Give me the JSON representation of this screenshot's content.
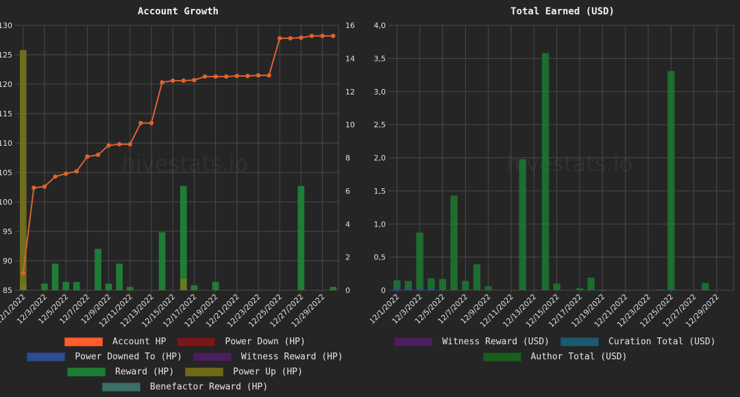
{
  "chart_data": [
    {
      "type": "bar",
      "title": "Account Growth",
      "watermark": "hivestats.io",
      "categories": [
        "12/1/2022",
        "12/2/2022",
        "12/3/2022",
        "12/4/2022",
        "12/5/2022",
        "12/6/2022",
        "12/7/2022",
        "12/8/2022",
        "12/9/2022",
        "12/10/2022",
        "12/11/2022",
        "12/12/2022",
        "12/13/2022",
        "12/14/2022",
        "12/15/2022",
        "12/16/2022",
        "12/17/2022",
        "12/18/2022",
        "12/19/2022",
        "12/20/2022",
        "12/21/2022",
        "12/22/2022",
        "12/23/2022",
        "12/24/2022",
        "12/25/2022",
        "12/26/2022",
        "12/27/2022",
        "12/28/2022",
        "12/29/2022",
        "12/30/2022"
      ],
      "x_tick_labels": [
        "12/1/2022",
        "12/3/2022",
        "12/5/2022",
        "12/7/2022",
        "12/9/2022",
        "12/11/2022",
        "12/13/2022",
        "12/15/2022",
        "12/17/2022",
        "12/19/2022",
        "12/21/2022",
        "12/23/2022",
        "12/25/2022",
        "12/27/2022",
        "12/29/2022"
      ],
      "y_left": {
        "min": 85,
        "max": 130,
        "step": 5
      },
      "y_right": {
        "min": 0,
        "max": 16,
        "step": 2
      },
      "grid": true,
      "legend_position": "bottom",
      "line_series": {
        "name": "Account HP",
        "color": "#e0622e",
        "axis": "left",
        "values": [
          87.9,
          102.4,
          102.6,
          104.3,
          104.8,
          105.2,
          107.7,
          108.0,
          109.6,
          109.8,
          109.8,
          113.4,
          113.4,
          120.3,
          120.6,
          120.6,
          120.7,
          121.3,
          121.3,
          121.3,
          121.4,
          121.4,
          121.5,
          121.5,
          127.8,
          127.8,
          127.9,
          128.2,
          128.2,
          128.2
        ]
      },
      "bar_series": [
        {
          "name": "Reward (HP)",
          "color": "#1e8c3a",
          "axis": "right",
          "values": [
            0.4,
            0,
            0.4,
            1.6,
            0.5,
            0.5,
            0,
            2.5,
            0.4,
            1.6,
            0.2,
            0,
            0,
            3.5,
            0,
            6.3,
            0.3,
            0,
            0.5,
            0,
            0,
            0,
            0,
            0,
            0,
            0,
            6.3,
            0,
            0,
            0.2
          ]
        },
        {
          "name": "Power Up (HP)",
          "color": "#7a7a1a",
          "axis": "right",
          "values": [
            14.5,
            0,
            0,
            0,
            0,
            0,
            0,
            0,
            0,
            0,
            0,
            0,
            0,
            0,
            0,
            0.7,
            0,
            0,
            0,
            0,
            0,
            0,
            0,
            0,
            0,
            0,
            0,
            0,
            0,
            0
          ]
        }
      ],
      "legend": [
        {
          "label": "Account HP",
          "color": "#ff5d2a"
        },
        {
          "label": "Power Down (HP)",
          "color": "#7a1619"
        },
        {
          "label": "Power Downed To (HP)",
          "color": "#2d4c91"
        },
        {
          "label": "Witness Reward (HP)",
          "color": "#4a1f5a"
        },
        {
          "label": "Reward (HP)",
          "color": "#1f7d34"
        },
        {
          "label": "Power Up (HP)",
          "color": "#6f6a17"
        },
        {
          "label": "Benefactor Reward (HP)",
          "color": "#3b6f66"
        }
      ]
    },
    {
      "type": "bar",
      "title": "Total Earned (USD)",
      "watermark": "hivestats.io",
      "categories": [
        "12/1/2022",
        "12/2/2022",
        "12/3/2022",
        "12/4/2022",
        "12/5/2022",
        "12/6/2022",
        "12/7/2022",
        "12/8/2022",
        "12/9/2022",
        "12/10/2022",
        "12/11/2022",
        "12/12/2022",
        "12/13/2022",
        "12/14/2022",
        "12/15/2022",
        "12/16/2022",
        "12/17/2022",
        "12/18/2022",
        "12/19/2022",
        "12/20/2022",
        "12/21/2022",
        "12/22/2022",
        "12/23/2022",
        "12/24/2022",
        "12/25/2022",
        "12/26/2022",
        "12/27/2022",
        "12/28/2022",
        "12/29/2022",
        "12/30/2022"
      ],
      "x_tick_labels": [
        "12/1/2022",
        "12/3/2022",
        "12/5/2022",
        "12/7/2022",
        "12/9/2022",
        "12/11/2022",
        "12/13/2022",
        "12/15/2022",
        "12/17/2022",
        "12/19/2022",
        "12/21/2022",
        "12/23/2022",
        "12/25/2022",
        "12/27/2022",
        "12/29/2022"
      ],
      "y_tick_labels": [
        "0",
        "0,5",
        "1,0",
        "1,5",
        "2,0",
        "2,5",
        "3,0",
        "3,5",
        "4,0"
      ],
      "y": {
        "min": 0,
        "max": 4,
        "step": 0.5
      },
      "grid": true,
      "legend_position": "bottom",
      "bar_series": [
        {
          "name": "Author Total (USD)",
          "color": "#1b7a30",
          "values": [
            0.15,
            0.14,
            0.87,
            0.18,
            0.17,
            1.43,
            0.14,
            0.39,
            0.06,
            0,
            0,
            1.98,
            0,
            3.58,
            0.1,
            0,
            0.03,
            0.19,
            0.01,
            0,
            0,
            0,
            0,
            0.01,
            3.31,
            0,
            0,
            0.11,
            0,
            0
          ]
        },
        {
          "name": "Curation Total (USD)",
          "color": "#1d5a78",
          "values": [
            0.05,
            0.05,
            0.05,
            0.04,
            0,
            0,
            0,
            0,
            0,
            0,
            0,
            0,
            0,
            0,
            0,
            0,
            0,
            0,
            0,
            0,
            0,
            0,
            0,
            0,
            0,
            0,
            0,
            0,
            0,
            0
          ]
        }
      ],
      "legend": [
        {
          "label": "Witness Reward (USD)",
          "color": "#4a1f5a"
        },
        {
          "label": "Curation Total (USD)",
          "color": "#1d5a72"
        },
        {
          "label": "Author Total (USD)",
          "color": "#1a5d1f"
        }
      ]
    }
  ],
  "legend_rows": {
    "left": [
      [
        0,
        1
      ],
      [
        2,
        3
      ],
      [
        4,
        5
      ],
      [
        6
      ]
    ],
    "right": [
      [
        0,
        1
      ],
      [
        2
      ]
    ]
  }
}
